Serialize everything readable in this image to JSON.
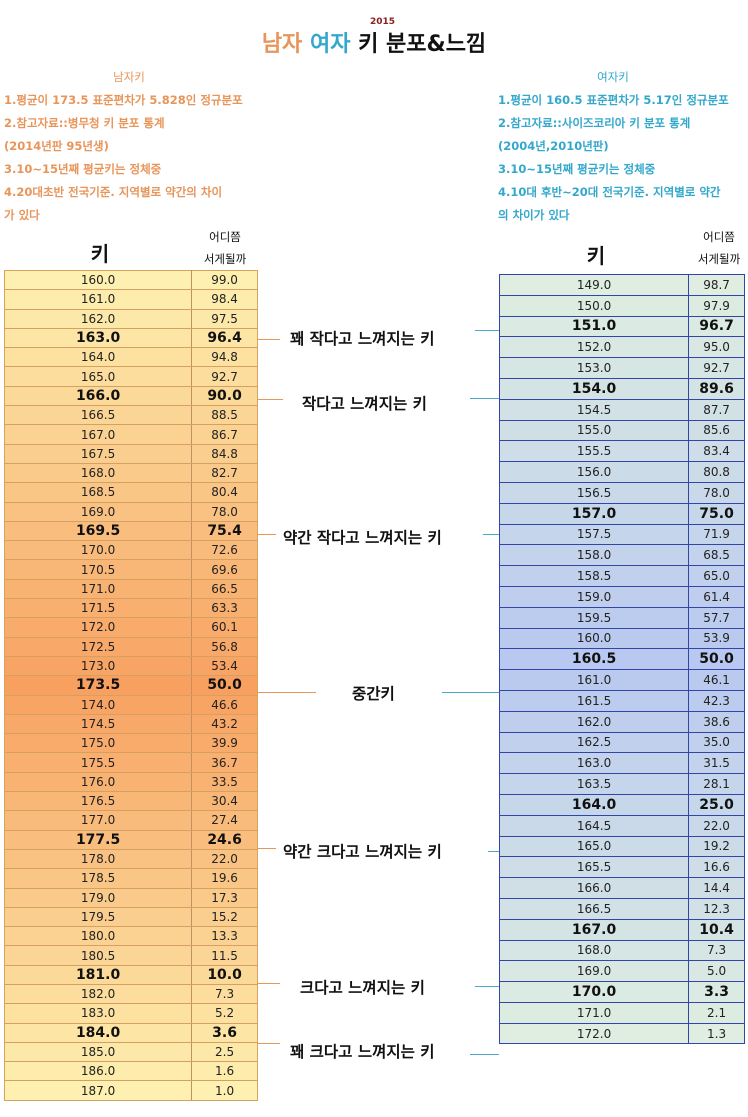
{
  "title": {
    "year": "2015",
    "male": "남자",
    "female": "여자",
    "rest": "키 분포&느낌"
  },
  "male_notes": {
    "heading": "남자키",
    "lines": [
      "1.평균이 173.5 표준편차가 5.828인 정규분포",
      "2.참고자료::병무청 키 분포 통계",
      "(2014년판 95년생)",
      "3.10~15년째 평균키는 정체중",
      "4.20대초반 전국기준. 지역별로 약간의 차이",
      "가 있다"
    ]
  },
  "female_notes": {
    "heading": "여자키",
    "lines": [
      "1.평균이 160.5 표준편차가 5.17인 정규분포",
      "2.참고자료::사이즈코리아 키 분포 통계",
      "(2004년,2010년판)",
      "3.10~15년째 평균키는 정체중",
      "4.10대 후반~20대 전국기준. 지역별로 약간",
      "의 차이가 있다"
    ]
  },
  "column_headers": {
    "height": "키",
    "rank_line1": "어디쯤",
    "rank_line2": "서게될까"
  },
  "labels": [
    "꽤 작다고 느껴지는 키",
    "작다고 느껴지는 키",
    "약간 작다고 느껴지는 키",
    "중간키",
    "약간 크다고 느껴지는 키",
    "크다고 느껴지는 키",
    "꽤 크다고 느껴지는 키"
  ],
  "colors": {
    "male_accent": "#e8955a",
    "female_accent": "#33a8cc",
    "male_table_light": "#fdf0b0",
    "male_table_dark": "#f7a060",
    "female_table_light": "#dfeee0",
    "female_table_dark": "#b8c8f0",
    "female_border": "#3344aa"
  },
  "chart_data": {
    "type": "table",
    "title": "2015 남자 여자 키 분포&느낌",
    "columns": [
      "키",
      "어디쯤 서게될까"
    ],
    "series": [
      {
        "name": "남자키",
        "mean": 173.5,
        "std": 5.828,
        "rows": [
          {
            "height": "160.0",
            "percentile": "99.0",
            "bold": false
          },
          {
            "height": "161.0",
            "percentile": "98.4",
            "bold": false
          },
          {
            "height": "162.0",
            "percentile": "97.5",
            "bold": false
          },
          {
            "height": "163.0",
            "percentile": "96.4",
            "bold": true
          },
          {
            "height": "164.0",
            "percentile": "94.8",
            "bold": false
          },
          {
            "height": "165.0",
            "percentile": "92.7",
            "bold": false
          },
          {
            "height": "166.0",
            "percentile": "90.0",
            "bold": true
          },
          {
            "height": "166.5",
            "percentile": "88.5",
            "bold": false
          },
          {
            "height": "167.0",
            "percentile": "86.7",
            "bold": false
          },
          {
            "height": "167.5",
            "percentile": "84.8",
            "bold": false
          },
          {
            "height": "168.0",
            "percentile": "82.7",
            "bold": false
          },
          {
            "height": "168.5",
            "percentile": "80.4",
            "bold": false
          },
          {
            "height": "169.0",
            "percentile": "78.0",
            "bold": false
          },
          {
            "height": "169.5",
            "percentile": "75.4",
            "bold": true
          },
          {
            "height": "170.0",
            "percentile": "72.6",
            "bold": false
          },
          {
            "height": "170.5",
            "percentile": "69.6",
            "bold": false
          },
          {
            "height": "171.0",
            "percentile": "66.5",
            "bold": false
          },
          {
            "height": "171.5",
            "percentile": "63.3",
            "bold": false
          },
          {
            "height": "172.0",
            "percentile": "60.1",
            "bold": false
          },
          {
            "height": "172.5",
            "percentile": "56.8",
            "bold": false
          },
          {
            "height": "173.0",
            "percentile": "53.4",
            "bold": false
          },
          {
            "height": "173.5",
            "percentile": "50.0",
            "bold": true
          },
          {
            "height": "174.0",
            "percentile": "46.6",
            "bold": false
          },
          {
            "height": "174.5",
            "percentile": "43.2",
            "bold": false
          },
          {
            "height": "175.0",
            "percentile": "39.9",
            "bold": false
          },
          {
            "height": "175.5",
            "percentile": "36.7",
            "bold": false
          },
          {
            "height": "176.0",
            "percentile": "33.5",
            "bold": false
          },
          {
            "height": "176.5",
            "percentile": "30.4",
            "bold": false
          },
          {
            "height": "177.0",
            "percentile": "27.4",
            "bold": false
          },
          {
            "height": "177.5",
            "percentile": "24.6",
            "bold": true
          },
          {
            "height": "178.0",
            "percentile": "22.0",
            "bold": false
          },
          {
            "height": "178.5",
            "percentile": "19.6",
            "bold": false
          },
          {
            "height": "179.0",
            "percentile": "17.3",
            "bold": false
          },
          {
            "height": "179.5",
            "percentile": "15.2",
            "bold": false
          },
          {
            "height": "180.0",
            "percentile": "13.3",
            "bold": false
          },
          {
            "height": "180.5",
            "percentile": "11.5",
            "bold": false
          },
          {
            "height": "181.0",
            "percentile": "10.0",
            "bold": true
          },
          {
            "height": "182.0",
            "percentile": "7.3",
            "bold": false
          },
          {
            "height": "183.0",
            "percentile": "5.2",
            "bold": false
          },
          {
            "height": "184.0",
            "percentile": "3.6",
            "bold": true
          },
          {
            "height": "185.0",
            "percentile": "2.5",
            "bold": false
          },
          {
            "height": "186.0",
            "percentile": "1.6",
            "bold": false
          },
          {
            "height": "187.0",
            "percentile": "1.0",
            "bold": false
          }
        ]
      },
      {
        "name": "여자키",
        "mean": 160.5,
        "std": 5.17,
        "rows": [
          {
            "height": "149.0",
            "percentile": "98.7",
            "bold": false
          },
          {
            "height": "150.0",
            "percentile": "97.9",
            "bold": false
          },
          {
            "height": "151.0",
            "percentile": "96.7",
            "bold": true
          },
          {
            "height": "152.0",
            "percentile": "95.0",
            "bold": false
          },
          {
            "height": "153.0",
            "percentile": "92.7",
            "bold": false
          },
          {
            "height": "154.0",
            "percentile": "89.6",
            "bold": true
          },
          {
            "height": "154.5",
            "percentile": "87.7",
            "bold": false
          },
          {
            "height": "155.0",
            "percentile": "85.6",
            "bold": false
          },
          {
            "height": "155.5",
            "percentile": "83.4",
            "bold": false
          },
          {
            "height": "156.0",
            "percentile": "80.8",
            "bold": false
          },
          {
            "height": "156.5",
            "percentile": "78.0",
            "bold": false
          },
          {
            "height": "157.0",
            "percentile": "75.0",
            "bold": true
          },
          {
            "height": "157.5",
            "percentile": "71.9",
            "bold": false
          },
          {
            "height": "158.0",
            "percentile": "68.5",
            "bold": false
          },
          {
            "height": "158.5",
            "percentile": "65.0",
            "bold": false
          },
          {
            "height": "159.0",
            "percentile": "61.4",
            "bold": false
          },
          {
            "height": "159.5",
            "percentile": "57.7",
            "bold": false
          },
          {
            "height": "160.0",
            "percentile": "53.9",
            "bold": false
          },
          {
            "height": "160.5",
            "percentile": "50.0",
            "bold": true
          },
          {
            "height": "161.0",
            "percentile": "46.1",
            "bold": false
          },
          {
            "height": "161.5",
            "percentile": "42.3",
            "bold": false
          },
          {
            "height": "162.0",
            "percentile": "38.6",
            "bold": false
          },
          {
            "height": "162.5",
            "percentile": "35.0",
            "bold": false
          },
          {
            "height": "163.0",
            "percentile": "31.5",
            "bold": false
          },
          {
            "height": "163.5",
            "percentile": "28.1",
            "bold": false
          },
          {
            "height": "164.0",
            "percentile": "25.0",
            "bold": true
          },
          {
            "height": "164.5",
            "percentile": "22.0",
            "bold": false
          },
          {
            "height": "165.0",
            "percentile": "19.2",
            "bold": false
          },
          {
            "height": "165.5",
            "percentile": "16.6",
            "bold": false
          },
          {
            "height": "166.0",
            "percentile": "14.4",
            "bold": false
          },
          {
            "height": "166.5",
            "percentile": "12.3",
            "bold": false
          },
          {
            "height": "167.0",
            "percentile": "10.4",
            "bold": true
          },
          {
            "height": "168.0",
            "percentile": "7.3",
            "bold": false
          },
          {
            "height": "169.0",
            "percentile": "5.0",
            "bold": false
          },
          {
            "height": "170.0",
            "percentile": "3.3",
            "bold": true
          },
          {
            "height": "171.0",
            "percentile": "2.1",
            "bold": false
          },
          {
            "height": "172.0",
            "percentile": "1.3",
            "bold": false
          }
        ]
      }
    ],
    "annotations": [
      {
        "label": "꽤 작다고 느껴지는 키",
        "male": "163.0",
        "female": "151.0"
      },
      {
        "label": "작다고 느껴지는 키",
        "male": "166.0",
        "female": "154.0"
      },
      {
        "label": "약간 작다고 느껴지는 키",
        "male": "169.5",
        "female": "157.0"
      },
      {
        "label": "중간키",
        "male": "173.5",
        "female": "160.5"
      },
      {
        "label": "약간 크다고 느껴지는 키",
        "male": "177.5",
        "female": "164.0"
      },
      {
        "label": "크다고 느껴지는 키",
        "male": "181.0",
        "female": "167.0"
      },
      {
        "label": "꽤 크다고 느껴지는 키",
        "male": "184.0",
        "female": "170.0"
      }
    ]
  }
}
